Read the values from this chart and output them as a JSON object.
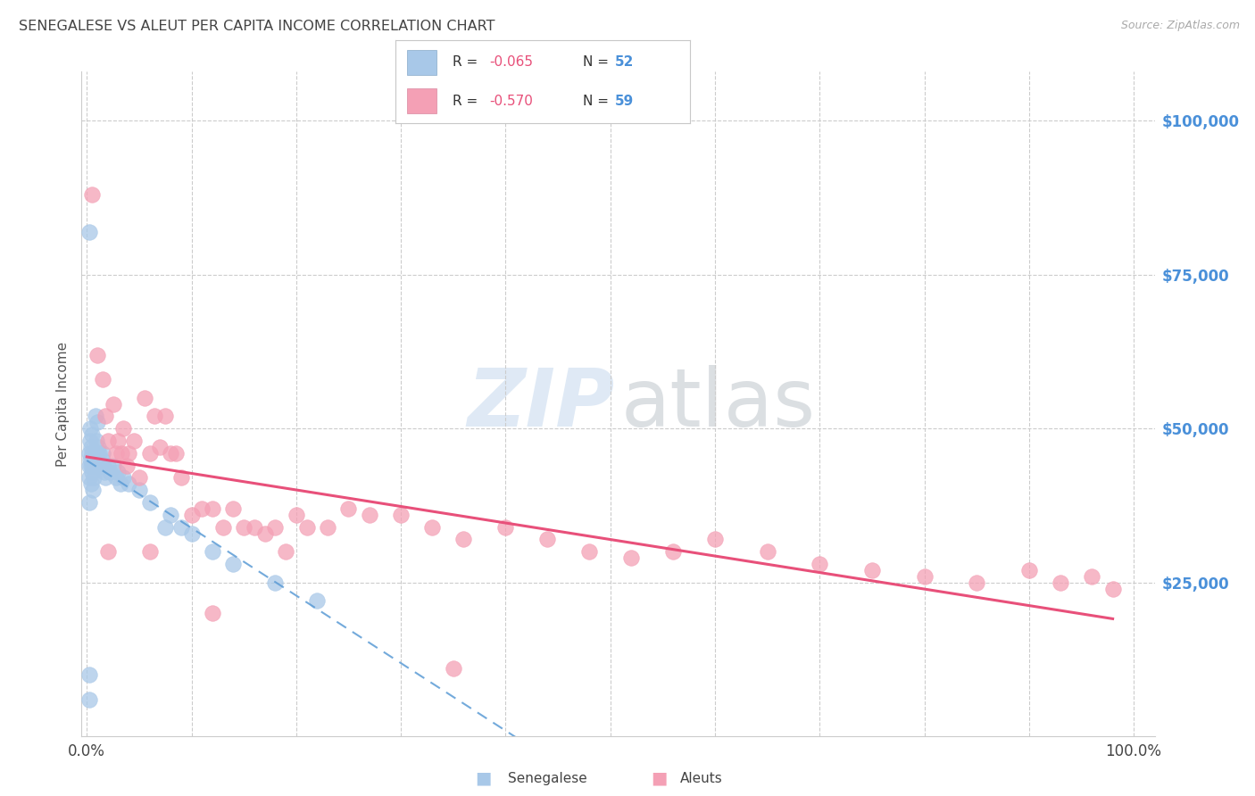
{
  "title": "SENEGALESE VS ALEUT PER CAPITA INCOME CORRELATION CHART",
  "source": "Source: ZipAtlas.com",
  "ylabel": "Per Capita Income",
  "y_tick_labels": [
    "$25,000",
    "$50,000",
    "$75,000",
    "$100,000"
  ],
  "y_tick_values": [
    25000,
    50000,
    75000,
    100000
  ],
  "xlim": [
    -0.005,
    1.02
  ],
  "ylim": [
    0,
    108000
  ],
  "senegalese_color": "#a8c8e8",
  "senegalese_edge": "#a8c8e8",
  "aleuts_color": "#f4a0b5",
  "aleuts_edge": "#f4a0b5",
  "senegalese_line_color": "#5b9bd5",
  "aleuts_line_color": "#e8507a",
  "background_color": "#ffffff",
  "grid_color": "#cccccc",
  "title_color": "#444444",
  "right_label_color": "#4a90d9",
  "legend_r1": "R = -0.065",
  "legend_n1": "N = 52",
  "legend_r2": "R = -0.570",
  "legend_n2": "N = 59",
  "senegalese_x": [
    0.002,
    0.002,
    0.002,
    0.002,
    0.003,
    0.003,
    0.003,
    0.004,
    0.004,
    0.004,
    0.005,
    0.005,
    0.005,
    0.006,
    0.006,
    0.007,
    0.007,
    0.008,
    0.008,
    0.009,
    0.009,
    0.01,
    0.01,
    0.011,
    0.012,
    0.013,
    0.014,
    0.015,
    0.016,
    0.017,
    0.018,
    0.02,
    0.022,
    0.025,
    0.028,
    0.03,
    0.032,
    0.035,
    0.04,
    0.05,
    0.06,
    0.075,
    0.08,
    0.09,
    0.1,
    0.12,
    0.14,
    0.18,
    0.22,
    0.002,
    0.002,
    0.002
  ],
  "senegalese_y": [
    46000,
    44000,
    42000,
    38000,
    50000,
    48000,
    45000,
    47000,
    44000,
    41000,
    49000,
    46000,
    43000,
    44000,
    40000,
    45000,
    42000,
    52000,
    46000,
    48000,
    44000,
    51000,
    46000,
    47000,
    46000,
    44000,
    45000,
    46000,
    44000,
    43000,
    42000,
    44000,
    43000,
    44000,
    42000,
    43000,
    41000,
    42000,
    41000,
    40000,
    38000,
    34000,
    36000,
    34000,
    33000,
    30000,
    28000,
    25000,
    22000,
    82000,
    10000,
    6000
  ],
  "aleuts_x": [
    0.005,
    0.01,
    0.015,
    0.018,
    0.02,
    0.025,
    0.028,
    0.03,
    0.033,
    0.035,
    0.038,
    0.04,
    0.045,
    0.05,
    0.055,
    0.06,
    0.065,
    0.07,
    0.075,
    0.08,
    0.085,
    0.09,
    0.1,
    0.11,
    0.12,
    0.13,
    0.14,
    0.15,
    0.16,
    0.17,
    0.18,
    0.19,
    0.2,
    0.21,
    0.23,
    0.25,
    0.27,
    0.3,
    0.33,
    0.36,
    0.4,
    0.44,
    0.48,
    0.52,
    0.56,
    0.6,
    0.65,
    0.7,
    0.75,
    0.8,
    0.85,
    0.9,
    0.93,
    0.96,
    0.98,
    0.02,
    0.06,
    0.12,
    0.35
  ],
  "aleuts_y": [
    88000,
    62000,
    58000,
    52000,
    48000,
    54000,
    46000,
    48000,
    46000,
    50000,
    44000,
    46000,
    48000,
    42000,
    55000,
    46000,
    52000,
    47000,
    52000,
    46000,
    46000,
    42000,
    36000,
    37000,
    37000,
    34000,
    37000,
    34000,
    34000,
    33000,
    34000,
    30000,
    36000,
    34000,
    34000,
    37000,
    36000,
    36000,
    34000,
    32000,
    34000,
    32000,
    30000,
    29000,
    30000,
    32000,
    30000,
    28000,
    27000,
    26000,
    25000,
    27000,
    25000,
    26000,
    24000,
    30000,
    30000,
    20000,
    11000
  ]
}
